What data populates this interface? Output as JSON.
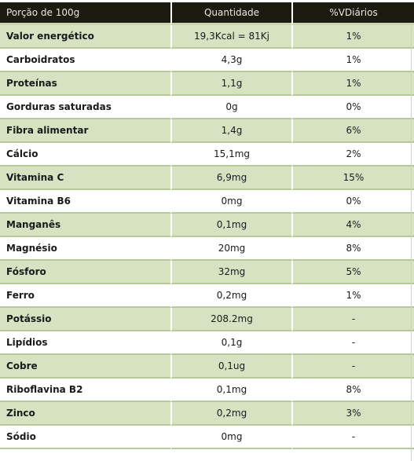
{
  "header": {
    "col1": "Porção de 100g",
    "col2": "Quantidade",
    "col3": "%VDiários"
  },
  "rows": [
    {
      "name": "Valor energético",
      "qty": "19,3Kcal = 81Kj",
      "vd": "1%"
    },
    {
      "name": "Carboidratos",
      "qty": "4,3g",
      "vd": "1%"
    },
    {
      "name": "Proteínas",
      "qty": "1,1g",
      "vd": "1%"
    },
    {
      "name": "Gorduras saturadas",
      "qty": "0g",
      "vd": "0%"
    },
    {
      "name": "Fibra alimentar",
      "qty": "1,4g",
      "vd": "6%"
    },
    {
      "name": "Cálcio",
      "qty": "15,1mg",
      "vd": "2%"
    },
    {
      "name": "Vitamina C",
      "qty": "6,9mg",
      "vd": "15%"
    },
    {
      "name": "Vitamina B6",
      "qty": "0mg",
      "vd": "0%"
    },
    {
      "name": "Manganês",
      "qty": "0,1mg",
      "vd": "4%"
    },
    {
      "name": "Magnésio",
      "qty": "20mg",
      "vd": "8%"
    },
    {
      "name": "Fósforo",
      "qty": "32mg",
      "vd": "5%"
    },
    {
      "name": "Ferro",
      "qty": "0,2mg",
      "vd": "1%"
    },
    {
      "name": "Potássio",
      "qty": "208.2mg",
      "vd": "-"
    },
    {
      "name": "Lipídios",
      "qty": "0,1g",
      "vd": "-"
    },
    {
      "name": "Cobre",
      "qty": "0,1ug",
      "vd": "-"
    },
    {
      "name": "Riboflavina B2",
      "qty": "0,1mg",
      "vd": "8%"
    },
    {
      "name": "Zinco",
      "qty": "0,2mg",
      "vd": "3%"
    },
    {
      "name": "Sódio",
      "qty": "0mg",
      "vd": "-"
    }
  ],
  "colors": {
    "header_bg": "#1b1b10",
    "row_shade": "#d7e2c3",
    "row_plain": "#ffffff",
    "divider": "#b7c998"
  }
}
